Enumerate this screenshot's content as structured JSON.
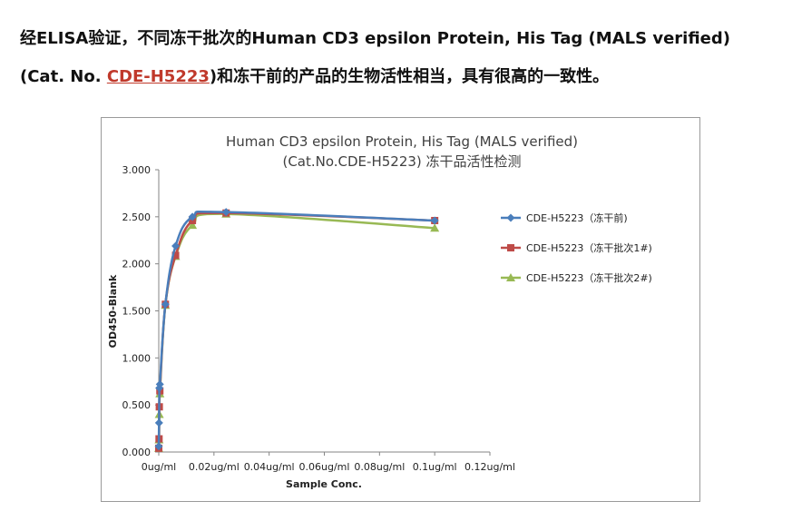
{
  "heading": {
    "line1": "经ELISA验证，不同冻干批次的Human CD3 epsilon Protein, His Tag (MALS verified)",
    "line2_prefix": "(Cat. No. ",
    "cat_link": "CDE-H5223",
    "line2_suffix": ")和冻干前的产品的生物活性相当，具有很高的一致性。"
  },
  "colors": {
    "link": "#c0392b"
  },
  "chart_data": {
    "type": "line",
    "title": "Human CD3 epsilon Protein, His Tag (MALS verified)",
    "subtitle": "(Cat.No.CDE-H5223) 冻干品活性检测",
    "xlabel": "Sample Conc.",
    "ylabel": "OD450-Blank",
    "xlim": [
      0,
      0.12
    ],
    "ylim": [
      0,
      3.0
    ],
    "x_ticks": [
      "0ug/ml",
      "0.02ug/ml",
      "0.04ug/ml",
      "0.06ug/ml",
      "0.08ug/ml",
      "0.1ug/ml",
      "0.12ug/ml"
    ],
    "y_ticks": [
      "0.000",
      "0.500",
      "1.000",
      "1.500",
      "2.000",
      "2.500",
      "3.000"
    ],
    "grid": false,
    "legend_position": "right",
    "series": [
      {
        "name": "CDE-H5223（冻干前)",
        "color": "#4a7ebb",
        "marker": "diamond",
        "points": [
          [
            0.0,
            0.06
          ],
          [
            0.0001,
            0.31
          ],
          [
            0.0002,
            0.68
          ],
          [
            0.0004,
            0.72
          ],
          [
            0.0024,
            1.57
          ],
          [
            0.0061,
            2.19
          ],
          [
            0.0122,
            2.5
          ],
          [
            0.0244,
            2.55
          ],
          [
            0.1,
            2.46
          ]
        ]
      },
      {
        "name": "CDE-H5223（冻干批次1#)",
        "color": "#be4b48",
        "marker": "square",
        "points": [
          [
            0.0,
            0.04
          ],
          [
            0.0001,
            0.14
          ],
          [
            0.0002,
            0.48
          ],
          [
            0.0004,
            0.65
          ],
          [
            0.0024,
            1.57
          ],
          [
            0.0061,
            2.09
          ],
          [
            0.0122,
            2.46
          ],
          [
            0.0244,
            2.54
          ],
          [
            0.1,
            2.46
          ]
        ]
      },
      {
        "name": "CDE-H5223（冻干批次2#)",
        "color": "#98b954",
        "marker": "triangle",
        "points": [
          [
            0.0,
            0.04
          ],
          [
            0.0001,
            0.13
          ],
          [
            0.0002,
            0.4
          ],
          [
            0.0004,
            0.62
          ],
          [
            0.0024,
            1.56
          ],
          [
            0.0061,
            2.08
          ],
          [
            0.0122,
            2.41
          ],
          [
            0.0244,
            2.53
          ],
          [
            0.1,
            2.38
          ]
        ]
      }
    ]
  }
}
